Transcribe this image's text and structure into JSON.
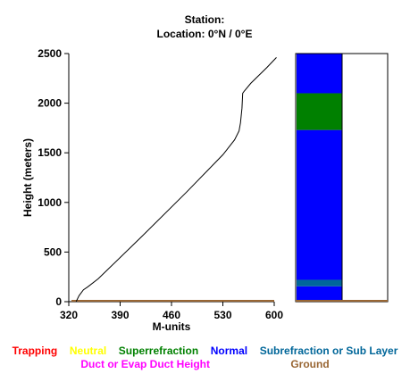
{
  "header": {
    "station_label": "Station:",
    "location_label": "Location:   0°N /   0°E"
  },
  "chart_data": {
    "type": "line",
    "xlabel": "M-units",
    "ylabel": "Height (meters)",
    "xlim": [
      320,
      600
    ],
    "ylim": [
      0,
      2500
    ],
    "xticks": [
      "320",
      "390",
      "460",
      "530",
      "600"
    ],
    "yticks": [
      "0",
      "500",
      "1000",
      "1500",
      "2000",
      "2500"
    ],
    "series": [
      {
        "color": "#000000",
        "x": [
          330,
          334,
          340,
          346,
          360,
          420,
          480,
          530,
          546,
          552,
          554,
          556,
          557,
          559,
          568,
          590,
          603
        ],
        "y": [
          0,
          60,
          120,
          150,
          230,
          660,
          1100,
          1480,
          1630,
          1720,
          1800,
          1950,
          2100,
          2120,
          2200,
          2360,
          2460
        ]
      }
    ],
    "ground_line": {
      "y": 0,
      "color": "#996633"
    },
    "refractivity_column": {
      "ylim": [
        0,
        2500
      ],
      "layers": [
        {
          "type": "Normal",
          "from": 0,
          "to": 155,
          "color": "#0000ff"
        },
        {
          "type": "Subrefraction or Sub Layer",
          "from": 155,
          "to": 220,
          "color": "#006699"
        },
        {
          "type": "Normal",
          "from": 220,
          "to": 1730,
          "color": "#0000ff"
        },
        {
          "type": "Superrefraction",
          "from": 1730,
          "to": 2100,
          "color": "#008000"
        },
        {
          "type": "Normal",
          "from": 2100,
          "to": 2500,
          "color": "#0000ff"
        }
      ]
    }
  },
  "legend": {
    "row1": [
      {
        "label": "Trapping",
        "color": "#ff0000"
      },
      {
        "label": "Neutral",
        "color": "#ffff00"
      },
      {
        "label": "Superrefraction",
        "color": "#008000"
      },
      {
        "label": "Normal",
        "color": "#0000ff"
      },
      {
        "label": "Subrefraction or Sub Layer",
        "color": "#006699"
      }
    ],
    "row2": [
      {
        "label": "Duct or Evap Duct Height",
        "color": "#ff00ff"
      },
      {
        "label": "Ground",
        "color": "#996633"
      }
    ]
  }
}
